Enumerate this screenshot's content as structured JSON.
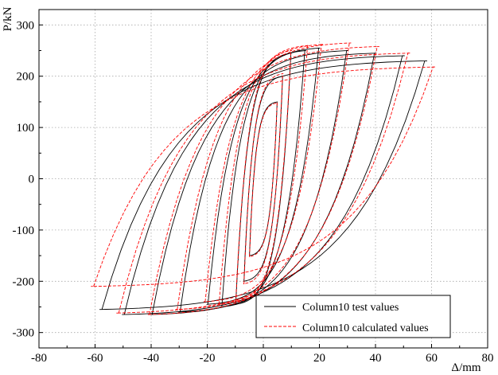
{
  "chart_data": {
    "type": "line",
    "title": "",
    "xlabel": "Δ/mm",
    "ylabel": "P/kN",
    "xlim": [
      -80,
      80
    ],
    "ylim": [
      -330,
      330
    ],
    "xticks": [
      -80,
      -60,
      -40,
      -20,
      0,
      20,
      40,
      60,
      80
    ],
    "yticks": [
      -300,
      -200,
      -100,
      0,
      100,
      200,
      300
    ],
    "x_tick_labels": [
      "-80",
      "-60",
      "-40",
      "-20",
      "0",
      "20",
      "40",
      "60",
      "80"
    ],
    "y_tick_labels": [
      "-300",
      "-200",
      "-100",
      "0",
      "100",
      "200",
      "300"
    ],
    "grid": true,
    "grid_style": "dotted",
    "legend_position": "bottom-right",
    "series": [
      {
        "name": "Column10 test values",
        "color": "#000000",
        "dash": "solid",
        "loops": [
          {
            "d": 5,
            "pmax": 150,
            "pmin": -150,
            "c": 0.0,
            "fo": 1.0
          },
          {
            "d": 7,
            "pmax": 200,
            "pmin": -200,
            "c": 0.0,
            "fo": 2.0
          },
          {
            "d": 10,
            "pmax": 245,
            "pmin": -245,
            "c": 0.0,
            "fo": 3.0
          },
          {
            "d": 15,
            "pmax": 250,
            "pmin": -250,
            "c": 0.0,
            "fo": 4.0
          },
          {
            "d": 20,
            "pmax": 255,
            "pmin": -245,
            "c": 0.0,
            "fo": 5.0
          },
          {
            "d": 30,
            "pmax": 250,
            "pmin": -260,
            "c": 0.0,
            "fo": 6.0
          },
          {
            "d": 40,
            "pmax": 245,
            "pmin": -265,
            "c": 0.0,
            "fo": 7.0
          },
          {
            "d": 50,
            "pmax": 240,
            "pmin": -265,
            "c": 0.0,
            "fo": 8.0
          },
          {
            "d": 58,
            "pmax": 230,
            "pmin": -255,
            "c": 0.0,
            "fo": 9.0
          }
        ]
      },
      {
        "name": "Column10 calculated values",
        "color": "#ff0000",
        "dash": "4,2",
        "loops": [
          {
            "d": 5,
            "pmax": 148,
            "pmin": -152,
            "c": 0.0,
            "fo": 1.3
          },
          {
            "d": 7,
            "pmax": 205,
            "pmin": -205,
            "c": 0.0,
            "fo": 2.3
          },
          {
            "d": 10,
            "pmax": 250,
            "pmin": -240,
            "c": 0.0,
            "fo": 3.3
          },
          {
            "d": 16,
            "pmax": 260,
            "pmin": -245,
            "c": 0.0,
            "fo": 4.3
          },
          {
            "d": 21,
            "pmax": 262,
            "pmin": -240,
            "c": 0.0,
            "fo": 5.3
          },
          {
            "d": 31,
            "pmax": 265,
            "pmin": -255,
            "c": 0.0,
            "fo": 6.3
          },
          {
            "d": 41,
            "pmax": 258,
            "pmin": -265,
            "c": 0.0,
            "fo": 7.3
          },
          {
            "d": 52,
            "pmax": 245,
            "pmin": -262,
            "c": 0.0,
            "fo": 8.3
          },
          {
            "d": 61,
            "pmax": 218,
            "pmin": -210,
            "c": 0.0,
            "fo": 9.3
          }
        ]
      }
    ]
  }
}
